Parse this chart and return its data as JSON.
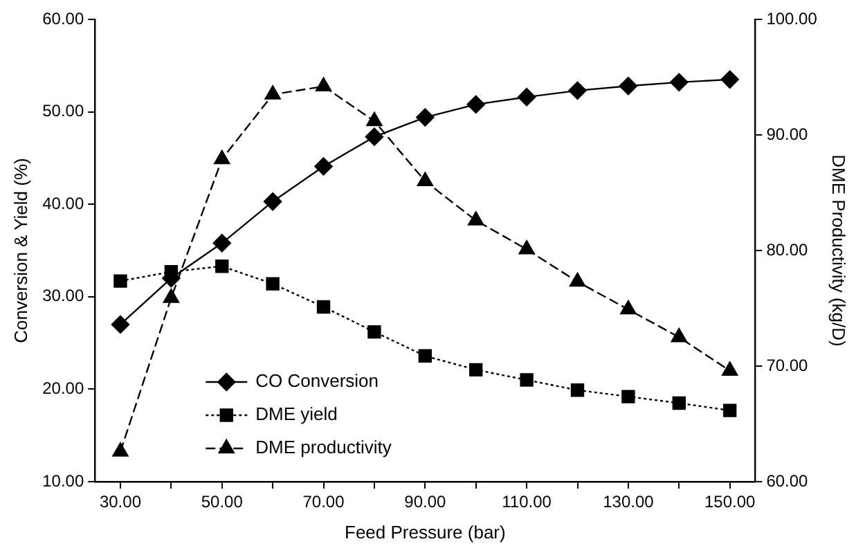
{
  "chart_data": {
    "type": "line",
    "xlabel": "Feed Pressure (bar)",
    "ylabel": "Conversion & Yield (%)",
    "y2label": "DME Productivity (kg/D)",
    "x": [
      30,
      40,
      50,
      60,
      70,
      80,
      90,
      100,
      110,
      120,
      130,
      140,
      150
    ],
    "series": [
      {
        "name": "CO Conversion",
        "color": "#000000",
        "marker": "diamond",
        "line_style": "solid",
        "values": [
          27.0,
          32.0,
          35.8,
          40.3,
          44.1,
          47.3,
          49.4,
          50.8,
          51.6,
          52.3,
          52.8,
          53.2,
          53.5
        ]
      },
      {
        "name": "DME yield",
        "color": "#000000",
        "marker": "square",
        "line_style": "dotted",
        "values": [
          31.7,
          32.7,
          33.3,
          31.4,
          28.9,
          26.2,
          23.6,
          22.1,
          21.0,
          19.9,
          19.2,
          18.5,
          17.7
        ]
      },
      {
        "name": "DME productivity",
        "color": "#000000",
        "marker": "triangle",
        "line_style": "dashed",
        "axis": "y2",
        "values": [
          62.6,
          75.9,
          87.9,
          93.5,
          94.2,
          91.2,
          86.0,
          82.6,
          80.1,
          77.3,
          74.9,
          72.5,
          69.6
        ]
      }
    ],
    "xlim": [
      25,
      155
    ],
    "xticks": [
      {
        "value": 30,
        "label": "30.00"
      },
      {
        "value": 40,
        "label": null
      },
      {
        "value": 50,
        "label": "50.00"
      },
      {
        "value": 60,
        "label": null
      },
      {
        "value": 70,
        "label": "70.00"
      },
      {
        "value": 80,
        "label": null
      },
      {
        "value": 90,
        "label": "90.00"
      },
      {
        "value": 100,
        "label": null
      },
      {
        "value": 110,
        "label": "110.00"
      },
      {
        "value": 120,
        "label": null
      },
      {
        "value": 130,
        "label": "130.00"
      },
      {
        "value": 140,
        "label": null
      },
      {
        "value": 150,
        "label": "150.00"
      }
    ],
    "ylim": [
      10,
      60
    ],
    "yticks": [
      {
        "value": 10,
        "label": "10.00"
      },
      {
        "value": 20,
        "label": "20.00"
      },
      {
        "value": 30,
        "label": "30.00"
      },
      {
        "value": 40,
        "label": "40.00"
      },
      {
        "value": 50,
        "label": "50.00"
      },
      {
        "value": 60,
        "label": "60.00"
      }
    ],
    "y2lim": [
      60,
      100
    ],
    "y2ticks": [
      {
        "value": 60,
        "label": "60.00"
      },
      {
        "value": 70,
        "label": "70.00"
      },
      {
        "value": 80,
        "label": "80.00"
      },
      {
        "value": 90,
        "label": "90.00"
      },
      {
        "value": 100,
        "label": "100.00"
      }
    ],
    "grid": false,
    "legend": "bottom left"
  }
}
